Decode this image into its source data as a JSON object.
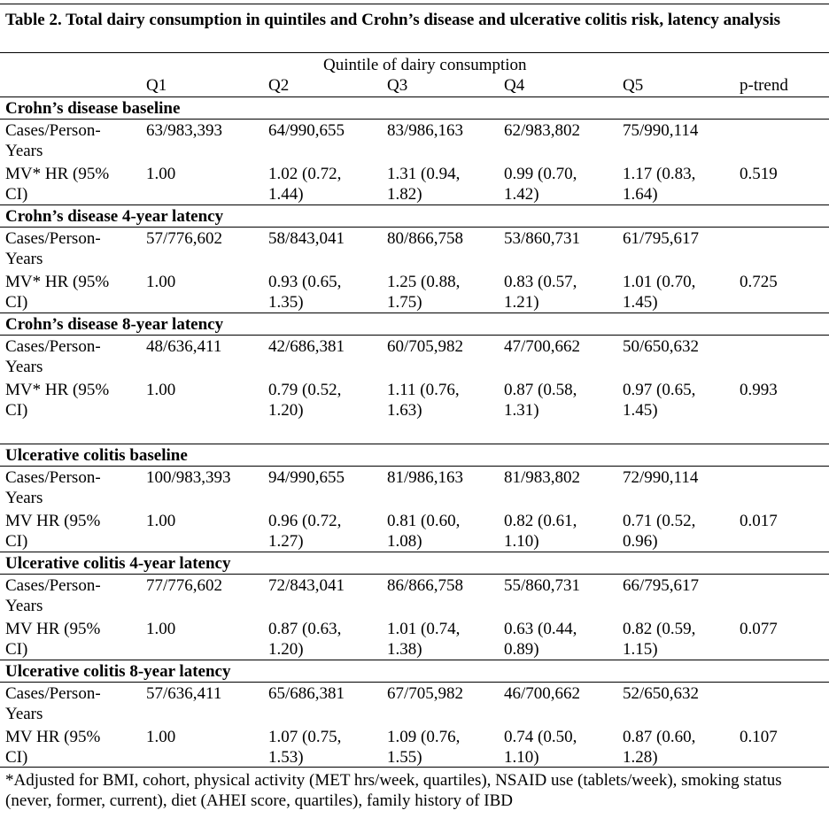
{
  "table": {
    "title": "Table 2. Total dairy consumption in quintiles and Crohn’s disease and ulcerative colitis risk, latency analysis",
    "span_header": "Quintile of dairy consumption",
    "columns": [
      "Q1",
      "Q2",
      "Q3",
      "Q4",
      "Q5",
      "p-trend"
    ],
    "sections": [
      {
        "heading": "Crohn’s disease baseline",
        "rows": [
          {
            "label": [
              "Cases/Person-",
              "Years"
            ],
            "cells": [
              [
                "63/983,393"
              ],
              [
                "64/990,655"
              ],
              [
                "83/986,163"
              ],
              [
                "62/983,802"
              ],
              [
                "75/990,114"
              ],
              [
                ""
              ]
            ]
          },
          {
            "label": [
              "MV* HR (95%",
              "CI)"
            ],
            "cells": [
              [
                "1.00"
              ],
              [
                "1.02 (0.72,",
                "1.44)"
              ],
              [
                "1.31 (0.94,",
                "1.82)"
              ],
              [
                "0.99 (0.70,",
                "1.42)"
              ],
              [
                "1.17 (0.83,",
                "1.64)"
              ],
              [
                "0.519"
              ]
            ]
          }
        ]
      },
      {
        "heading": "Crohn’s disease 4-year latency",
        "rows": [
          {
            "label": [
              "Cases/Person-",
              "Years"
            ],
            "cells": [
              [
                "57/776,602"
              ],
              [
                "58/843,041"
              ],
              [
                "80/866,758"
              ],
              [
                "53/860,731"
              ],
              [
                "61/795,617"
              ],
              [
                ""
              ]
            ]
          },
          {
            "label": [
              "MV* HR (95%",
              "CI)"
            ],
            "cells": [
              [
                "1.00"
              ],
              [
                "0.93 (0.65,",
                "1.35)"
              ],
              [
                "1.25 (0.88,",
                "1.75)"
              ],
              [
                "0.83 (0.57,",
                "1.21)"
              ],
              [
                "1.01 (0.70,",
                "1.45)"
              ],
              [
                "0.725"
              ]
            ]
          }
        ]
      },
      {
        "heading": "Crohn’s disease 8-year latency",
        "rows": [
          {
            "label": [
              "Cases/Person-",
              "Years"
            ],
            "cells": [
              [
                "48/636,411"
              ],
              [
                "42/686,381"
              ],
              [
                "60/705,982"
              ],
              [
                "47/700,662"
              ],
              [
                "50/650,632"
              ],
              [
                ""
              ]
            ]
          },
          {
            "label": [
              "MV* HR (95%",
              "CI)"
            ],
            "cells": [
              [
                "1.00"
              ],
              [
                "0.79 (0.52,",
                "1.20)"
              ],
              [
                "1.11 (0.76,",
                "1.63)"
              ],
              [
                "0.87 (0.58,",
                "1.31)"
              ],
              [
                "0.97 (0.65,",
                "1.45)"
              ],
              [
                "0.993"
              ]
            ]
          }
        ]
      },
      {
        "heading": "Ulcerative colitis baseline",
        "rows": [
          {
            "label": [
              "Cases/Person-",
              "Years"
            ],
            "cells": [
              [
                "100/983,393"
              ],
              [
                "94/990,655"
              ],
              [
                "81/986,163"
              ],
              [
                "81/983,802"
              ],
              [
                "72/990,114"
              ],
              [
                ""
              ]
            ]
          },
          {
            "label": [
              "MV HR (95%",
              "CI)"
            ],
            "cells": [
              [
                "1.00"
              ],
              [
                "0.96 (0.72,",
                "1.27)"
              ],
              [
                "0.81 (0.60,",
                "1.08)"
              ],
              [
                "0.82 (0.61,",
                "1.10)"
              ],
              [
                "0.71 (0.52,",
                "0.96)"
              ],
              [
                "0.017"
              ]
            ]
          }
        ]
      },
      {
        "heading": "Ulcerative colitis 4-year latency",
        "rows": [
          {
            "label": [
              "Cases/Person-",
              "Years"
            ],
            "cells": [
              [
                "77/776,602"
              ],
              [
                "72/843,041"
              ],
              [
                "86/866,758"
              ],
              [
                "55/860,731"
              ],
              [
                "66/795,617"
              ],
              [
                ""
              ]
            ]
          },
          {
            "label": [
              "MV HR (95%",
              "CI)"
            ],
            "cells": [
              [
                "1.00"
              ],
              [
                "0.87 (0.63,",
                "1.20)"
              ],
              [
                "1.01 (0.74,",
                "1.38)"
              ],
              [
                "0.63 (0.44,",
                "0.89)"
              ],
              [
                "0.82 (0.59,",
                "1.15)"
              ],
              [
                "0.077"
              ]
            ]
          }
        ]
      },
      {
        "heading": "Ulcerative colitis 8-year latency",
        "rows": [
          {
            "label": [
              "Cases/Person-",
              "Years"
            ],
            "cells": [
              [
                "57/636,411"
              ],
              [
                "65/686,381"
              ],
              [
                "67/705,982"
              ],
              [
                "46/700,662"
              ],
              [
                "52/650,632"
              ],
              [
                ""
              ]
            ]
          },
          {
            "label": [
              "MV HR (95%",
              "CI)"
            ],
            "cells": [
              [
                "1.00"
              ],
              [
                "1.07 (0.75,",
                "1.53)"
              ],
              [
                "1.09 (0.76,",
                "1.55)"
              ],
              [
                "0.74 (0.50,",
                "1.10)"
              ],
              [
                "0.87 (0.60,",
                "1.28)"
              ],
              [
                "0.107"
              ]
            ]
          }
        ]
      }
    ],
    "footnote": "*Adjusted for BMI, cohort, physical activity (MET hrs/week, quartiles), NSAID use (tablets/week), smoking status (never, former, current), diet (AHEI score, quartiles), family history of IBD"
  }
}
